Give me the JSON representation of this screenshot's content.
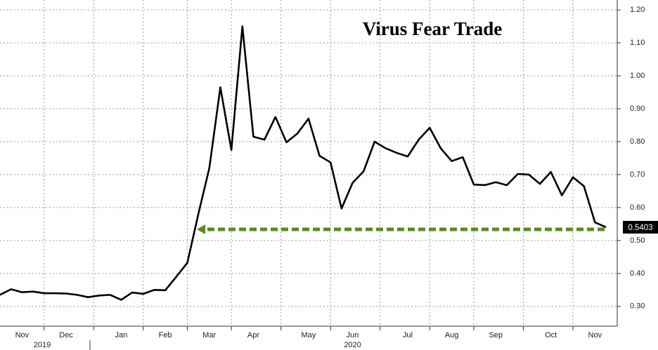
{
  "chart_data": {
    "type": "line",
    "title": "Virus Fear Trade",
    "categories": [
      null,
      null,
      "Nov",
      null,
      null,
      null,
      "Dec",
      null,
      null,
      null,
      null,
      "Jan",
      null,
      null,
      null,
      "Feb",
      null,
      null,
      null,
      "Mar",
      null,
      null,
      null,
      "Apr",
      null,
      null,
      null,
      null,
      "May",
      null,
      null,
      null,
      "Jun",
      null,
      null,
      null,
      null,
      "Jul",
      null,
      null,
      null,
      "Aug",
      null,
      null,
      null,
      "Sep",
      null,
      null,
      null,
      null,
      "Oct",
      null,
      null,
      null,
      "Nov",
      null
    ],
    "years": [
      "2019",
      "2020"
    ],
    "series": [
      {
        "name": "Virus Fear Trade",
        "color": "#000000",
        "values": [
          0.335,
          0.352,
          0.343,
          0.345,
          0.34,
          0.34,
          0.339,
          0.335,
          0.328,
          0.333,
          0.335,
          0.32,
          0.342,
          0.338,
          0.35,
          0.349,
          0.39,
          0.432,
          0.58,
          0.72,
          0.965,
          0.775,
          1.15,
          0.815,
          0.806,
          0.875,
          0.798,
          0.825,
          0.87,
          0.757,
          0.737,
          0.597,
          0.675,
          0.71,
          0.8,
          0.78,
          0.766,
          0.755,
          0.806,
          0.842,
          0.78,
          0.741,
          0.753,
          0.67,
          0.668,
          0.677,
          0.668,
          0.702,
          0.7,
          0.672,
          0.708,
          0.637,
          0.692,
          0.665,
          0.555,
          0.5403
        ]
      }
    ],
    "ylim": [
      0.24,
      1.23
    ],
    "yticks": [
      {
        "value": 0.3,
        "label": "0.30"
      },
      {
        "value": 0.4,
        "label": "0.40"
      },
      {
        "value": 0.5,
        "label": "0.50"
      },
      {
        "value": 0.6,
        "label": "0.60"
      },
      {
        "value": 0.7,
        "label": "0.70"
      },
      {
        "value": 0.8,
        "label": "0.80"
      },
      {
        "value": 0.9,
        "label": "0.90"
      },
      {
        "value": 1.0,
        "label": "1.00"
      },
      {
        "value": 1.1,
        "label": "1.10"
      },
      {
        "value": 1.2,
        "label": "1.20"
      }
    ],
    "grid": true,
    "annotation_color": "#5a8a1e"
  }
}
